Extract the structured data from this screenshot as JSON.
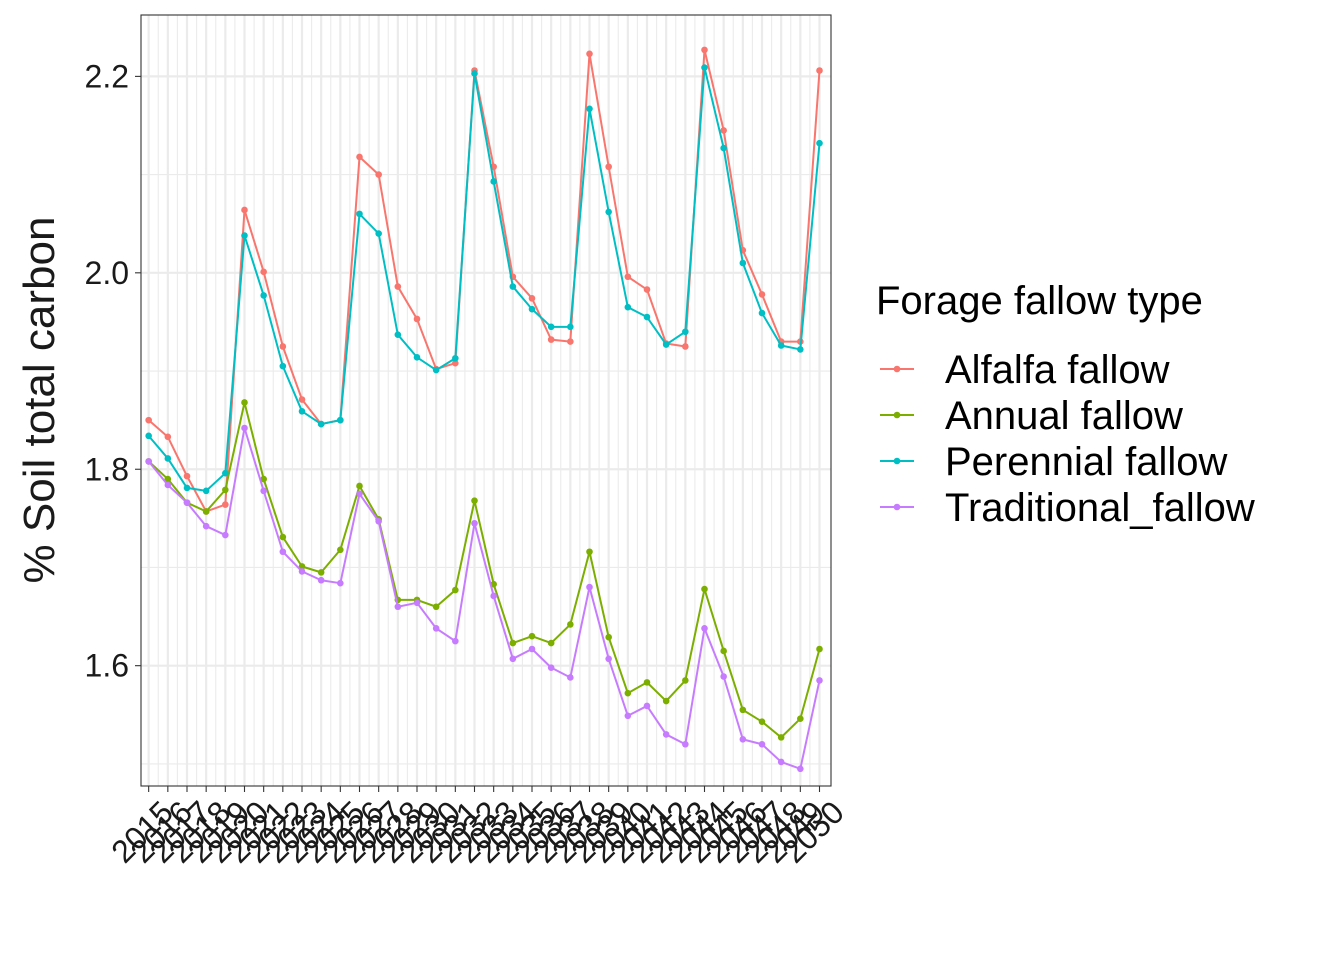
{
  "chart_data": {
    "type": "line",
    "ylabel": "% Soil total carbon",
    "xlabel": "",
    "x": [
      2015,
      2016,
      2017,
      2018,
      2019,
      2020,
      2021,
      2022,
      2023,
      2024,
      2025,
      2026,
      2027,
      2028,
      2029,
      2030,
      2031,
      2032,
      2033,
      2034,
      2035,
      2036,
      2037,
      2038,
      2039,
      2040,
      2041,
      2042,
      2043,
      2044,
      2045,
      2046,
      2047,
      2048,
      2049,
      2050
    ],
    "xlim": [
      2014.6,
      2050.6
    ],
    "ylim": [
      1.4775,
      2.2625
    ],
    "yticks": [
      1.6,
      1.8,
      2.0,
      2.2
    ],
    "ytick_labels": [
      "1.6",
      "1.8",
      "2.0",
      "2.2"
    ],
    "grid": true,
    "legend": {
      "title": "Forage fallow type",
      "position": "right"
    },
    "series": [
      {
        "name": "Alfalfa fallow",
        "color": "#F8766D",
        "values": [
          1.85,
          1.833,
          1.793,
          1.757,
          1.764,
          2.064,
          2.001,
          1.925,
          1.871,
          1.846,
          1.85,
          2.118,
          2.1,
          1.986,
          1.953,
          1.902,
          1.908,
          2.206,
          2.108,
          1.996,
          1.974,
          1.932,
          1.93,
          2.223,
          2.108,
          1.996,
          1.983,
          1.928,
          1.925,
          2.227,
          2.145,
          2.023,
          1.978,
          1.93,
          1.93,
          2.206
        ]
      },
      {
        "name": "Annual fallow",
        "color": "#7CAE00",
        "values": [
          1.808,
          1.79,
          1.766,
          1.757,
          1.779,
          1.868,
          1.79,
          1.731,
          1.701,
          1.695,
          1.718,
          1.783,
          1.749,
          1.667,
          1.667,
          1.66,
          1.677,
          1.768,
          1.683,
          1.623,
          1.63,
          1.623,
          1.642,
          1.716,
          1.629,
          1.572,
          1.583,
          1.564,
          1.585,
          1.678,
          1.615,
          1.555,
          1.543,
          1.527,
          1.546,
          1.617
        ]
      },
      {
        "name": "Perennial fallow",
        "color": "#00BFC4",
        "values": [
          1.834,
          1.811,
          1.781,
          1.778,
          1.796,
          2.038,
          1.977,
          1.905,
          1.859,
          1.846,
          1.85,
          2.06,
          2.04,
          1.937,
          1.914,
          1.901,
          1.913,
          2.203,
          2.093,
          1.986,
          1.963,
          1.945,
          1.945,
          2.167,
          2.062,
          1.965,
          1.955,
          1.927,
          1.94,
          2.209,
          2.127,
          2.01,
          1.959,
          1.926,
          1.922,
          2.132
        ]
      },
      {
        "name": "Traditional_fallow",
        "color": "#C77CFF",
        "values": [
          1.808,
          1.784,
          1.766,
          1.742,
          1.733,
          1.842,
          1.778,
          1.716,
          1.696,
          1.687,
          1.684,
          1.775,
          1.747,
          1.66,
          1.664,
          1.638,
          1.625,
          1.745,
          1.671,
          1.607,
          1.617,
          1.598,
          1.588,
          1.68,
          1.607,
          1.549,
          1.559,
          1.53,
          1.52,
          1.638,
          1.589,
          1.525,
          1.52,
          1.502,
          1.495,
          1.585
        ]
      }
    ]
  }
}
